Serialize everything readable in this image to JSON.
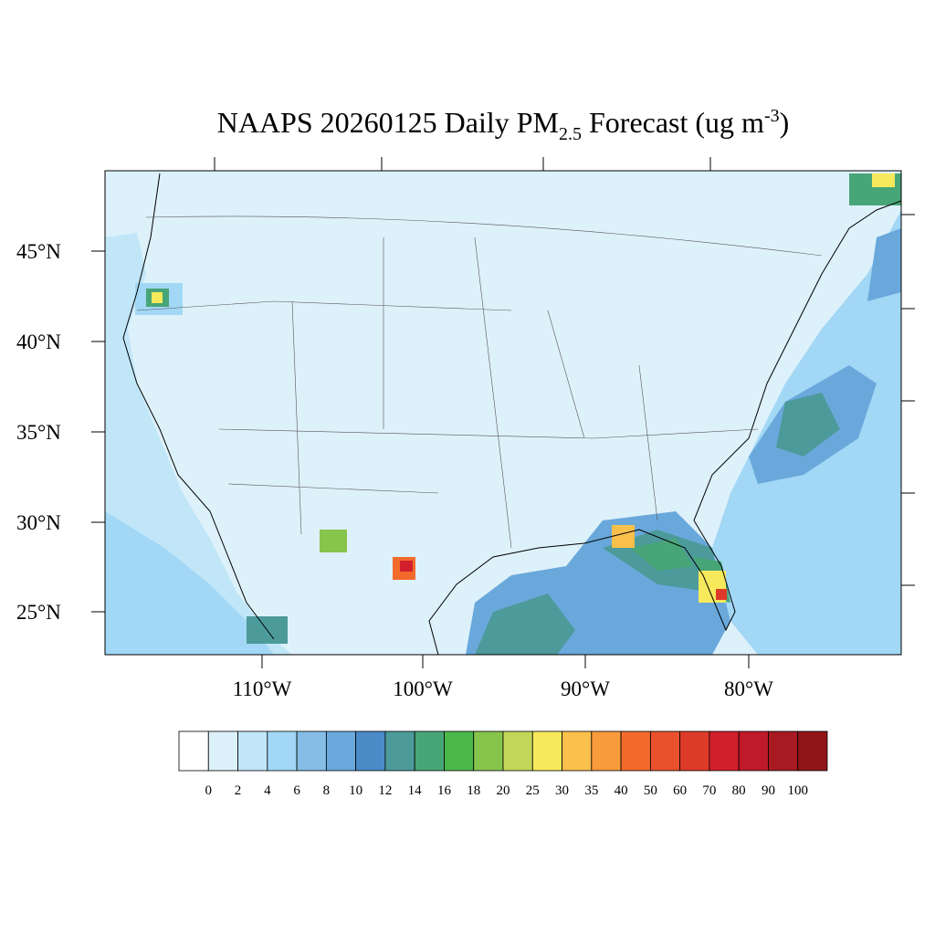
{
  "title": {
    "main": "NAAPS 20260125 Daily PM",
    "subscript": "2.5",
    "rest": " Forecast (ug m",
    "superscript": "-3",
    "close": ")"
  },
  "lat_labels": [
    "45°N",
    "40°N",
    "35°N",
    "30°N",
    "25°N"
  ],
  "lon_labels": [
    "110°W",
    "100°W",
    "90°W",
    "80°W"
  ],
  "colorbar": {
    "levels": [
      0,
      2,
      4,
      6,
      8,
      10,
      12,
      14,
      16,
      18,
      20,
      25,
      30,
      35,
      40,
      50,
      60,
      70,
      80,
      90,
      100
    ],
    "colors": [
      "#ffffff",
      "#ddf1fb",
      "#c0e6f8",
      "#a2d7f5",
      "#85bde6",
      "#6aa8dc",
      "#4a8bc8",
      "#4d9a9b",
      "#48a577",
      "#4bb84a",
      "#86c44c",
      "#c2d75a",
      "#f6e95c",
      "#f9c04b",
      "#f89b3c",
      "#f26b2d",
      "#e9512c",
      "#de3a2a",
      "#d1202b",
      "#bf1a2a",
      "#a81a22",
      "#8f1519"
    ]
  }
}
